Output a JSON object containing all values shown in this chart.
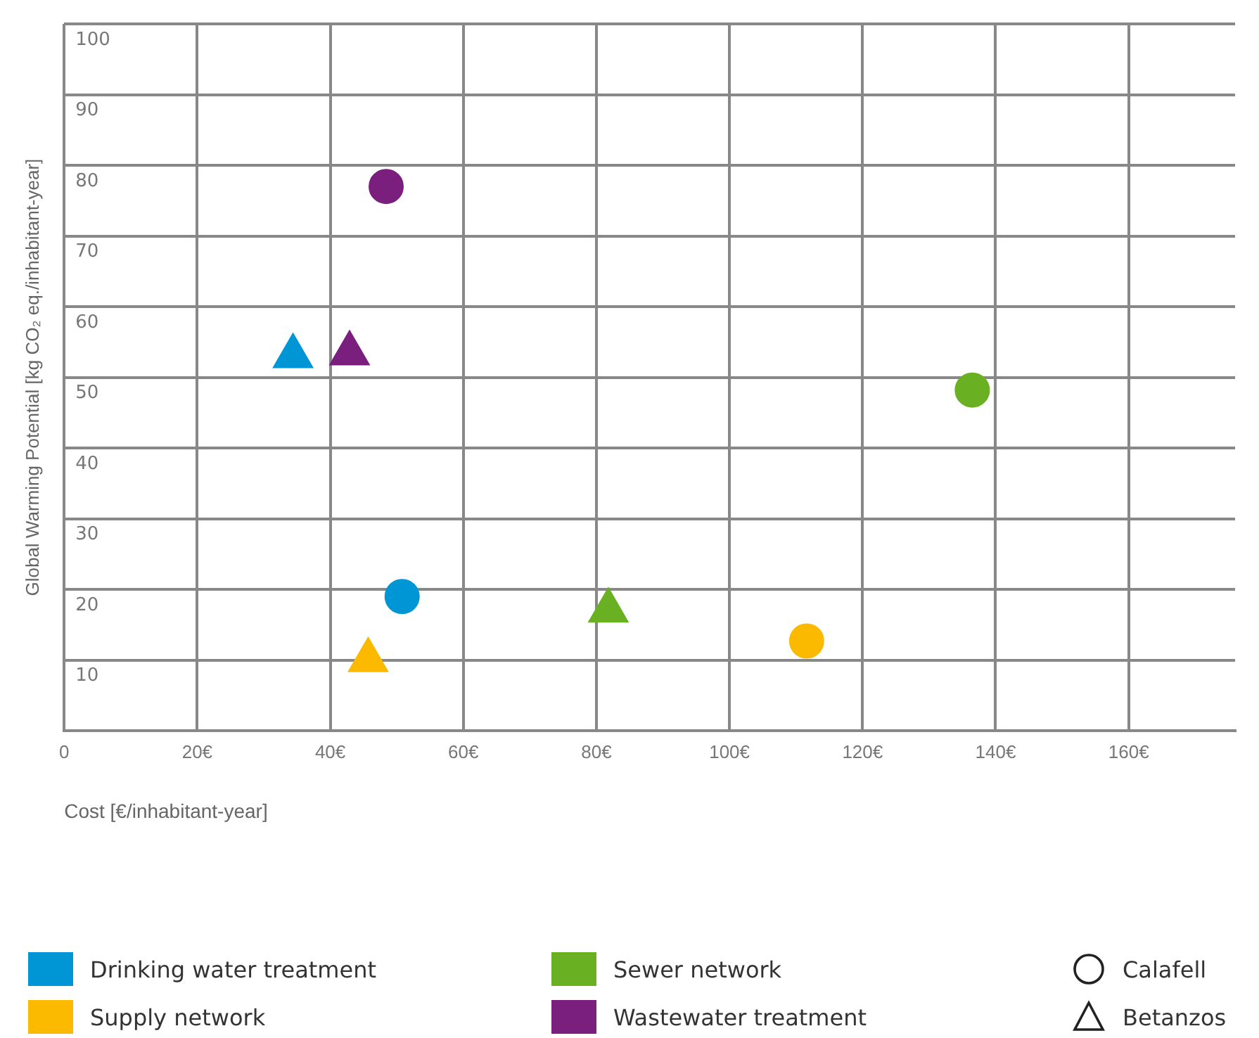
{
  "chart_data": {
    "type": "scatter",
    "xlabel": "Cost [€/inhabitant-year]",
    "ylabel": "Global Warming Potential [kg CO₂ eq./inhabitant-year]",
    "xlim": [
      0,
      176
    ],
    "xticks": [
      0,
      {
        "value": 20,
        "label": "20€"
      },
      {
        "value": 40,
        "label": "40€"
      },
      {
        "value": 60,
        "label": "60€"
      },
      {
        "value": 80,
        "label": "80€"
      },
      {
        "value": 100,
        "label": "100€"
      },
      {
        "value": 120,
        "label": "120€"
      },
      {
        "value": 140,
        "label": "140€"
      },
      {
        "value": 160,
        "label": "160€"
      }
    ],
    "ylim": [
      0,
      100
    ],
    "yticks": [
      {
        "value": 0,
        "label": null
      },
      10,
      20,
      30,
      40,
      50,
      60,
      70,
      80,
      90,
      100
    ],
    "grid": true,
    "legend": "bottom",
    "series": [
      {
        "name": "Drinking water treatment",
        "color": "#0096d6",
        "marker": "circle",
        "x": [
          50.8
        ],
        "values": [
          19
        ]
      },
      {
        "color": "#0096d6",
        "marker": "triangle",
        "x": [
          34.4
        ],
        "values": [
          53
        ]
      },
      {
        "name": "Supply network",
        "color": "#fbb900",
        "marker": "circle",
        "x": [
          111.6
        ],
        "values": [
          12.7
        ]
      },
      {
        "color": "#fbb900",
        "marker": "triangle",
        "x": [
          45.7
        ],
        "values": [
          10
        ]
      },
      {
        "name": "Sewer network",
        "color": "#6ab023",
        "marker": "circle",
        "x": [
          136.5
        ],
        "values": [
          48.2
        ]
      },
      {
        "color": "#6ab023",
        "marker": "triangle",
        "x": [
          81.8
        ],
        "values": [
          17
        ]
      },
      {
        "name": "Wastewater treatment",
        "color": "#7b1f7f",
        "marker": "circle",
        "x": [
          48.4
        ],
        "values": [
          77
        ]
      },
      {
        "color": "#7b1f7f",
        "marker": "triangle",
        "x": [
          42.9
        ],
        "values": [
          53.4
        ]
      },
      {
        "name": "Calafell",
        "color": "#222222",
        "marker": "circle"
      },
      {
        "name": "Betanzos",
        "color": "#222222",
        "marker": "triangle"
      }
    ]
  }
}
